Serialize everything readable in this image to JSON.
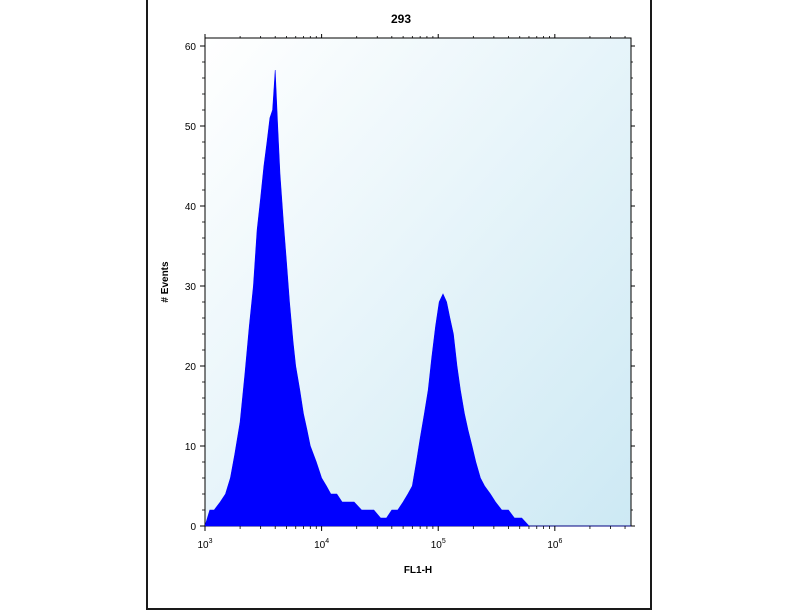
{
  "chart_data": {
    "type": "area",
    "title": "293",
    "xlabel": "FL1-H",
    "ylabel": "# Events",
    "x_scale": "log",
    "xlim": [
      1000,
      4500000
    ],
    "ylim": [
      0,
      61
    ],
    "x_ticks": [
      {
        "value": 1000,
        "base": "10",
        "exp": "3"
      },
      {
        "value": 10000,
        "base": "10",
        "exp": "4"
      },
      {
        "value": 100000,
        "base": "10",
        "exp": "5"
      },
      {
        "value": 1000000,
        "base": "10",
        "exp": "6"
      }
    ],
    "y_ticks": [
      0,
      10,
      20,
      30,
      40,
      50,
      60
    ],
    "grid": false,
    "plot_background": [
      "#ffffff",
      "#cde9f4"
    ],
    "colors": {
      "fill": "#0000ff"
    },
    "series": [
      {
        "x": [
          1000,
          1100,
          1200,
          1350,
          1500,
          1650,
          1800,
          2000,
          2200,
          2400,
          2600,
          2800,
          3000,
          3200,
          3400,
          3600,
          3800,
          4000,
          4200,
          4400,
          4700,
          5000,
          5300,
          5700,
          6000,
          6500,
          7000,
          7500,
          8000,
          9000,
          10000,
          11000,
          12000,
          13500,
          15000,
          17000,
          19000,
          22000,
          25000,
          28000,
          32000,
          36000,
          40000,
          45000,
          50000,
          55000,
          60000,
          65000,
          70000,
          76000,
          82000,
          88000,
          95000,
          102000,
          110000,
          118000,
          126000,
          135000,
          145000,
          155000,
          168000,
          180000,
          195000,
          210000,
          230000,
          250000,
          280000,
          310000,
          350000,
          400000,
          450000,
          520000,
          600000,
          700000,
          800000,
          1000000,
          1300000,
          1700000,
          2200000,
          3000000,
          4000000,
          4500000
        ],
        "values": [
          0,
          2,
          2,
          3,
          4,
          6,
          9,
          13,
          19,
          25,
          30,
          37,
          41,
          45,
          48,
          51,
          52,
          57,
          50,
          44,
          38,
          33,
          28,
          23,
          20,
          17,
          14,
          12,
          10,
          8,
          6,
          5,
          4,
          4,
          3,
          3,
          3,
          2,
          2,
          2,
          1,
          1,
          2,
          2,
          3,
          4,
          5,
          8,
          11,
          14,
          17,
          21,
          25,
          28,
          29,
          28,
          26,
          24,
          20,
          17,
          14,
          12,
          10,
          8,
          6,
          5,
          4,
          3,
          2,
          2,
          1,
          1,
          0,
          0,
          0,
          0,
          0,
          0,
          0,
          0,
          0,
          0
        ]
      }
    ]
  }
}
